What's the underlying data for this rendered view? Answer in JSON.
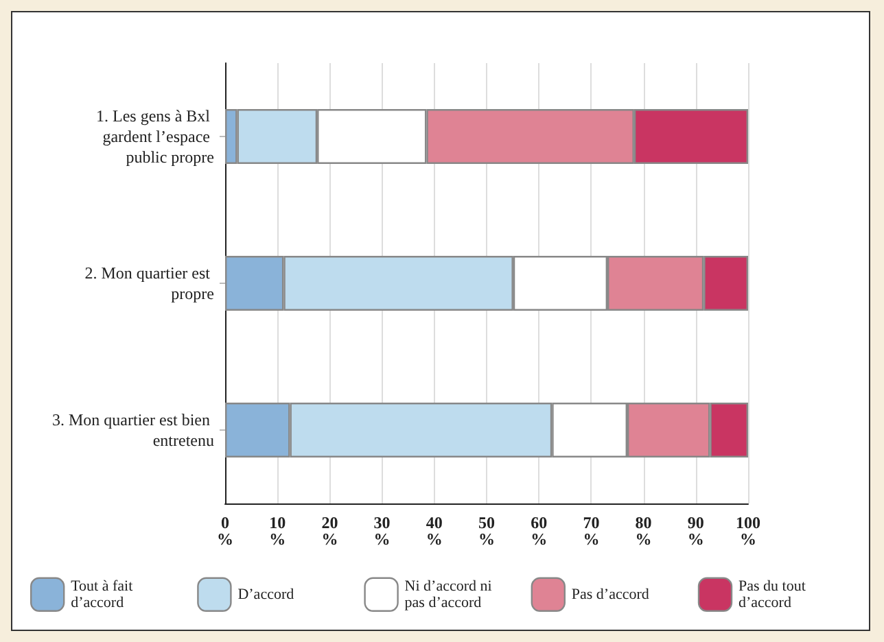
{
  "chart_data": {
    "type": "bar",
    "orientation": "horizontal",
    "stacked": true,
    "categories": [
      "1. Les gens à Bxl gardent l’espace public propre",
      "2. Mon quartier est propre",
      "3. Mon quartier est bien entretenu"
    ],
    "series": [
      {
        "name": "Tout à fait d’accord",
        "color": "#8ab3d9",
        "values": [
          2.3,
          11.2,
          12.4
        ]
      },
      {
        "name": "D’accord",
        "color": "#bedcee",
        "values": [
          15.3,
          43.9,
          50.1
        ]
      },
      {
        "name": "Ni d’accord ni pas d’accord",
        "color": "#ffffff",
        "values": [
          20.9,
          18.0,
          14.4
        ]
      },
      {
        "name": "Pas d’accord",
        "color": "#df8394",
        "values": [
          39.7,
          18.4,
          15.8
        ]
      },
      {
        "name": "Pas du tout d’accord",
        "color": "#c93562",
        "values": [
          21.8,
          8.5,
          7.3
        ]
      }
    ],
    "xlim": [
      0,
      100
    ],
    "xticks": [
      {
        "value": 0,
        "label": "0\n%"
      },
      {
        "value": 10,
        "label": "10\n%"
      },
      {
        "value": 20,
        "label": "20\n%"
      },
      {
        "value": 30,
        "label": "30\n%"
      },
      {
        "value": 40,
        "label": "40\n%"
      },
      {
        "value": 50,
        "label": "50\n%"
      },
      {
        "value": 60,
        "label": "60\n%"
      },
      {
        "value": 70,
        "label": "70\n%"
      },
      {
        "value": 80,
        "label": "80\n%"
      },
      {
        "value": 90,
        "label": "90\n%"
      },
      {
        "value": 100,
        "label": "100\n%"
      }
    ],
    "grid": "x",
    "legend": "bottom"
  }
}
